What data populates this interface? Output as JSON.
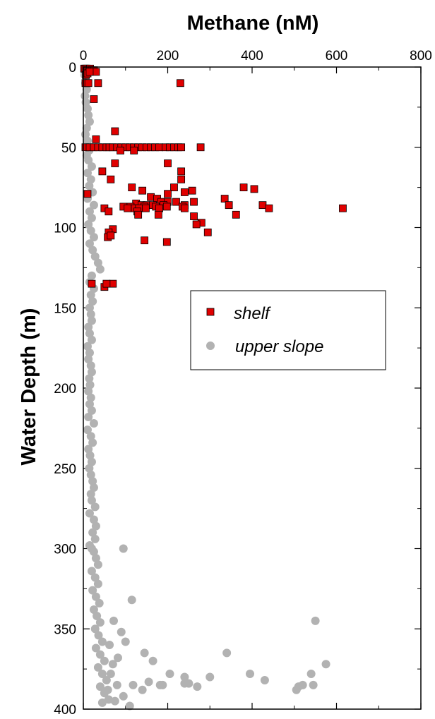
{
  "chart_data": {
    "type": "scatter",
    "title": "",
    "xlabel": "Methane (nM)",
    "ylabel": "Water Depth (m)",
    "x_axis_position": "top",
    "y_axis_inverted": true,
    "xlim": [
      0,
      800
    ],
    "ylim": [
      0,
      400
    ],
    "x_ticks": [
      0,
      200,
      400,
      600,
      800
    ],
    "x_tick_labels": [
      "0",
      "200",
      "400",
      "600",
      "800"
    ],
    "y_ticks": [
      0,
      50,
      100,
      150,
      200,
      250,
      300,
      350,
      400
    ],
    "y_tick_labels": [
      "0",
      "50",
      "100",
      "150",
      "200",
      "250",
      "300",
      "350",
      "400"
    ],
    "grid": false,
    "legend_position": "right-middle",
    "series": [
      {
        "name": "shelf",
        "marker": "square",
        "color": "#e00000",
        "edge_color": "#000000",
        "points": [
          [
            2,
            1
          ],
          [
            5,
            1
          ],
          [
            8,
            1
          ],
          [
            10,
            2
          ],
          [
            13,
            2
          ],
          [
            16,
            1
          ],
          [
            20,
            2
          ],
          [
            25,
            2
          ],
          [
            30,
            3
          ],
          [
            6,
            5
          ],
          [
            10,
            4
          ],
          [
            15,
            3
          ],
          [
            5,
            10
          ],
          [
            8,
            10
          ],
          [
            12,
            10
          ],
          [
            35,
            10
          ],
          [
            230,
            10
          ],
          [
            25,
            20
          ],
          [
            30,
            45
          ],
          [
            75,
            40
          ],
          [
            5,
            50
          ],
          [
            15,
            50
          ],
          [
            25,
            50
          ],
          [
            35,
            50
          ],
          [
            45,
            50
          ],
          [
            55,
            50
          ],
          [
            62,
            50
          ],
          [
            70,
            50
          ],
          [
            80,
            50
          ],
          [
            90,
            50
          ],
          [
            100,
            50
          ],
          [
            110,
            50
          ],
          [
            120,
            50
          ],
          [
            130,
            50
          ],
          [
            140,
            50
          ],
          [
            150,
            50
          ],
          [
            160,
            50
          ],
          [
            170,
            50
          ],
          [
            180,
            50
          ],
          [
            195,
            50
          ],
          [
            205,
            50
          ],
          [
            215,
            50
          ],
          [
            225,
            50
          ],
          [
            232,
            50
          ],
          [
            278,
            50
          ],
          [
            88,
            52
          ],
          [
            120,
            52
          ],
          [
            200,
            60
          ],
          [
            75,
            60
          ],
          [
            45,
            65
          ],
          [
            232,
            65
          ],
          [
            232,
            70
          ],
          [
            65,
            70
          ],
          [
            215,
            75
          ],
          [
            115,
            75
          ],
          [
            140,
            77
          ],
          [
            240,
            78
          ],
          [
            258,
            77
          ],
          [
            380,
            75
          ],
          [
            405,
            76
          ],
          [
            10,
            79
          ],
          [
            200,
            79
          ],
          [
            160,
            81
          ],
          [
            175,
            82
          ],
          [
            335,
            82
          ],
          [
            185,
            84
          ],
          [
            200,
            84
          ],
          [
            220,
            84
          ],
          [
            262,
            84
          ],
          [
            125,
            85
          ],
          [
            138,
            86
          ],
          [
            150,
            86
          ],
          [
            165,
            86
          ],
          [
            190,
            86
          ],
          [
            240,
            86
          ],
          [
            345,
            86
          ],
          [
            425,
            86
          ],
          [
            95,
            87
          ],
          [
            112,
            87
          ],
          [
            145,
            87
          ],
          [
            172,
            87
          ],
          [
            198,
            87
          ],
          [
            235,
            87
          ],
          [
            50,
            88
          ],
          [
            105,
            88
          ],
          [
            122,
            88
          ],
          [
            132,
            88
          ],
          [
            148,
            88
          ],
          [
            180,
            88
          ],
          [
            240,
            88
          ],
          [
            440,
            88
          ],
          [
            615,
            88
          ],
          [
            128,
            90
          ],
          [
            60,
            90
          ],
          [
            178,
            92
          ],
          [
            262,
            93
          ],
          [
            362,
            92
          ],
          [
            130,
            92
          ],
          [
            280,
            97
          ],
          [
            268,
            98
          ],
          [
            295,
            103
          ],
          [
            70,
            101
          ],
          [
            60,
            103
          ],
          [
            58,
            106
          ],
          [
            65,
            105
          ],
          [
            145,
            108
          ],
          [
            198,
            109
          ],
          [
            20,
            135
          ],
          [
            70,
            135
          ],
          [
            50,
            137
          ],
          [
            55,
            135
          ]
        ]
      },
      {
        "name": "upper slope",
        "marker": "circle",
        "color": "#b2b2b2",
        "points": [
          [
            3,
            5
          ],
          [
            5,
            10
          ],
          [
            8,
            14
          ],
          [
            4,
            18
          ],
          [
            6,
            22
          ],
          [
            10,
            26
          ],
          [
            12,
            30
          ],
          [
            15,
            34
          ],
          [
            8,
            38
          ],
          [
            5,
            42
          ],
          [
            10,
            46
          ],
          [
            14,
            52
          ],
          [
            8,
            55
          ],
          [
            12,
            58
          ],
          [
            20,
            62
          ],
          [
            10,
            66
          ],
          [
            18,
            70
          ],
          [
            14,
            74
          ],
          [
            22,
            78
          ],
          [
            10,
            82
          ],
          [
            25,
            86
          ],
          [
            15,
            90
          ],
          [
            20,
            94
          ],
          [
            12,
            98
          ],
          [
            18,
            102
          ],
          [
            25,
            106
          ],
          [
            15,
            110
          ],
          [
            22,
            114
          ],
          [
            28,
            118
          ],
          [
            35,
            122
          ],
          [
            40,
            126
          ],
          [
            20,
            130
          ],
          [
            15,
            134
          ],
          [
            25,
            138
          ],
          [
            18,
            142
          ],
          [
            22,
            146
          ],
          [
            15,
            150
          ],
          [
            18,
            154
          ],
          [
            20,
            158
          ],
          [
            12,
            162
          ],
          [
            15,
            166
          ],
          [
            20,
            170
          ],
          [
            10,
            174
          ],
          [
            15,
            178
          ],
          [
            12,
            182
          ],
          [
            18,
            186
          ],
          [
            20,
            190
          ],
          [
            14,
            194
          ],
          [
            16,
            198
          ],
          [
            12,
            202
          ],
          [
            18,
            206
          ],
          [
            15,
            210
          ],
          [
            20,
            214
          ],
          [
            12,
            218
          ],
          [
            25,
            222
          ],
          [
            10,
            226
          ],
          [
            18,
            230
          ],
          [
            22,
            234
          ],
          [
            12,
            238
          ],
          [
            16,
            242
          ],
          [
            20,
            246
          ],
          [
            14,
            250
          ],
          [
            18,
            254
          ],
          [
            22,
            258
          ],
          [
            25,
            262
          ],
          [
            18,
            266
          ],
          [
            20,
            270
          ],
          [
            28,
            274
          ],
          [
            15,
            278
          ],
          [
            25,
            282
          ],
          [
            30,
            286
          ],
          [
            22,
            290
          ],
          [
            28,
            294
          ],
          [
            15,
            298
          ],
          [
            20,
            300
          ],
          [
            25,
            302
          ],
          [
            30,
            306
          ],
          [
            35,
            310
          ],
          [
            20,
            314
          ],
          [
            28,
            318
          ],
          [
            35,
            322
          ],
          [
            22,
            326
          ],
          [
            30,
            330
          ],
          [
            38,
            334
          ],
          [
            25,
            338
          ],
          [
            32,
            342
          ],
          [
            40,
            346
          ],
          [
            28,
            350
          ],
          [
            36,
            354
          ],
          [
            45,
            358
          ],
          [
            30,
            362
          ],
          [
            40,
            366
          ],
          [
            50,
            370
          ],
          [
            35,
            374
          ],
          [
            45,
            378
          ],
          [
            55,
            382
          ],
          [
            40,
            386
          ],
          [
            50,
            390
          ],
          [
            60,
            394
          ],
          [
            45,
            396
          ],
          [
            95,
            300
          ],
          [
            115,
            332
          ],
          [
            100,
            358
          ],
          [
            145,
            365
          ],
          [
            165,
            370
          ],
          [
            205,
            378
          ],
          [
            240,
            380
          ],
          [
            250,
            384
          ],
          [
            300,
            380
          ],
          [
            340,
            365
          ],
          [
            395,
            378
          ],
          [
            430,
            382
          ],
          [
            510,
            386
          ],
          [
            540,
            378
          ],
          [
            550,
            345
          ],
          [
            575,
            372
          ],
          [
            505,
            388
          ],
          [
            520,
            385
          ],
          [
            545,
            385
          ],
          [
            155,
            383
          ],
          [
            188,
            385
          ],
          [
            182,
            385
          ],
          [
            270,
            386
          ],
          [
            240,
            384
          ],
          [
            118,
            385
          ],
          [
            140,
            388
          ],
          [
            95,
            392
          ],
          [
            110,
            398
          ],
          [
            75,
            395
          ],
          [
            80,
            385
          ],
          [
            65,
            378
          ],
          [
            58,
            388
          ],
          [
            70,
            372
          ],
          [
            82,
            368
          ],
          [
            62,
            360
          ],
          [
            90,
            352
          ],
          [
            72,
            345
          ]
        ]
      }
    ]
  }
}
